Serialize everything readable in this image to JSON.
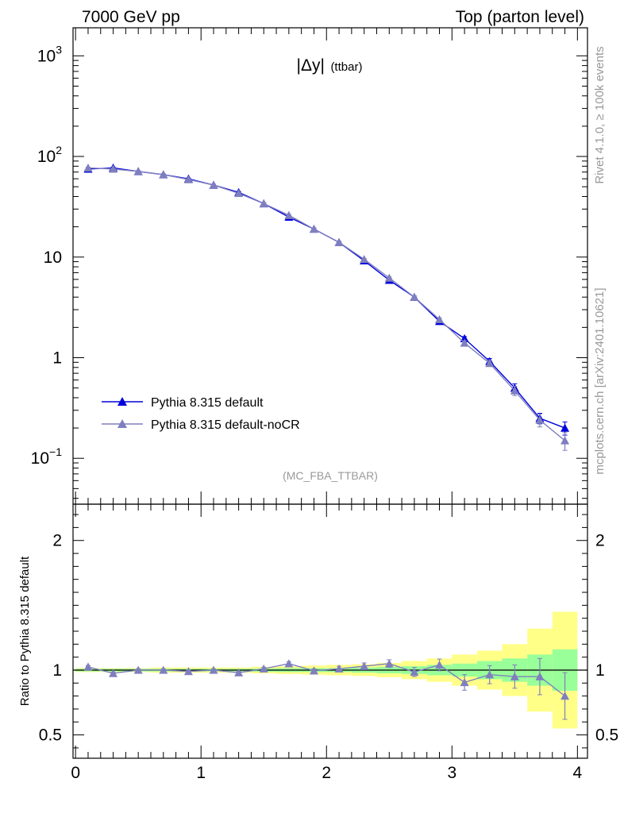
{
  "header": {
    "left_title": "7000 GeV pp",
    "right_title": "Top (parton level)"
  },
  "side_labels": {
    "rivet": "Rivet 4.1.0, ≥ 100k events",
    "mcplots": "mcplots.cern.ch [arXiv:2401.10621]"
  },
  "colors": {
    "series_default": "#0000dd",
    "series_nocr": "#7f7fbf",
    "band_inner": "#99ff99",
    "band_outer": "#ffff88"
  },
  "chart_data": [
    {
      "type": "line",
      "panel": "main",
      "title": "|Δy| (ttbar)",
      "title_main": "|Δy|",
      "title_sub": "(ttbar)",
      "watermark": "(MC_FBA_TTBAR)",
      "xlim": [
        -0.02,
        4.08
      ],
      "ylim": [
        0.035,
        1900
      ],
      "yscale": "log",
      "y_ticks": [
        {
          "value": 1000,
          "base": "10",
          "exp": "3"
        },
        {
          "value": 100,
          "base": "10",
          "exp": "2"
        },
        {
          "value": 10,
          "base": "10",
          "exp": ""
        },
        {
          "value": 1,
          "base": "1",
          "exp": ""
        },
        {
          "value": 0.1,
          "base": "10",
          "exp": "−1"
        }
      ],
      "x": [
        0.1,
        0.3,
        0.5,
        0.7,
        0.9,
        1.1,
        1.3,
        1.5,
        1.7,
        1.9,
        2.1,
        2.3,
        2.5,
        2.7,
        2.9,
        3.1,
        3.3,
        3.5,
        3.7,
        3.9
      ],
      "series": [
        {
          "name": "Pythia 8.315 default",
          "values": [
            75,
            77,
            71,
            66,
            60,
            52,
            44,
            34,
            25,
            19,
            14,
            9.2,
            5.9,
            4.0,
            2.3,
            1.55,
            0.92,
            0.5,
            0.25,
            0.2
          ],
          "errors": [
            1,
            1,
            1,
            1,
            1,
            0.8,
            0.7,
            0.6,
            0.5,
            0.4,
            0.3,
            0.2,
            0.15,
            0.1,
            0.08,
            0.07,
            0.06,
            0.05,
            0.03,
            0.03
          ]
        },
        {
          "name": "Pythia 8.315 default-noCR",
          "values": [
            77,
            75,
            71,
            66,
            59,
            52,
            43,
            34,
            26,
            19,
            14,
            9.5,
            6.2,
            4.0,
            2.4,
            1.4,
            0.88,
            0.47,
            0.24,
            0.15
          ],
          "errors": [
            1,
            1,
            1,
            1,
            1,
            0.8,
            0.7,
            0.6,
            0.5,
            0.4,
            0.3,
            0.2,
            0.15,
            0.1,
            0.08,
            0.07,
            0.06,
            0.05,
            0.035,
            0.03
          ]
        }
      ]
    },
    {
      "type": "line",
      "panel": "ratio",
      "ylabel": "Ratio to Pythia 8.315 default",
      "xlim": [
        -0.02,
        4.08
      ],
      "ylim": [
        0.32,
        2.28
      ],
      "x_ticks": [
        "0",
        "1",
        "2",
        "3",
        "4"
      ],
      "y_ticks": [
        "0.5",
        "1",
        "2"
      ],
      "reference": 1.0,
      "bands": {
        "edges": [
          0,
          0.2,
          0.4,
          0.6,
          0.8,
          1.0,
          1.2,
          1.4,
          1.6,
          1.8,
          2.0,
          2.2,
          2.4,
          2.6,
          2.8,
          3.0,
          3.2,
          3.4,
          3.6,
          3.8,
          4.0
        ],
        "inner_half": [
          0.01,
          0.01,
          0.01,
          0.01,
          0.01,
          0.01,
          0.01,
          0.012,
          0.015,
          0.015,
          0.015,
          0.02,
          0.025,
          0.03,
          0.04,
          0.05,
          0.07,
          0.09,
          0.12,
          0.16
        ],
        "outer_half": [
          0.015,
          0.015,
          0.015,
          0.02,
          0.02,
          0.02,
          0.02,
          0.025,
          0.03,
          0.035,
          0.04,
          0.045,
          0.055,
          0.07,
          0.09,
          0.12,
          0.15,
          0.2,
          0.32,
          0.45
        ]
      },
      "series": [
        {
          "name": "Pythia 8.315 default-noCR",
          "values": [
            1.025,
            0.975,
            1.0,
            1.0,
            0.99,
            1.0,
            0.98,
            1.01,
            1.05,
            0.995,
            1.01,
            1.03,
            1.05,
            0.985,
            1.04,
            0.905,
            0.965,
            0.95,
            0.95,
            0.8
          ],
          "errors": [
            0.01,
            0.01,
            0.01,
            0.01,
            0.01,
            0.01,
            0.01,
            0.012,
            0.015,
            0.015,
            0.02,
            0.025,
            0.03,
            0.035,
            0.045,
            0.06,
            0.07,
            0.09,
            0.14,
            0.18
          ]
        }
      ]
    }
  ]
}
